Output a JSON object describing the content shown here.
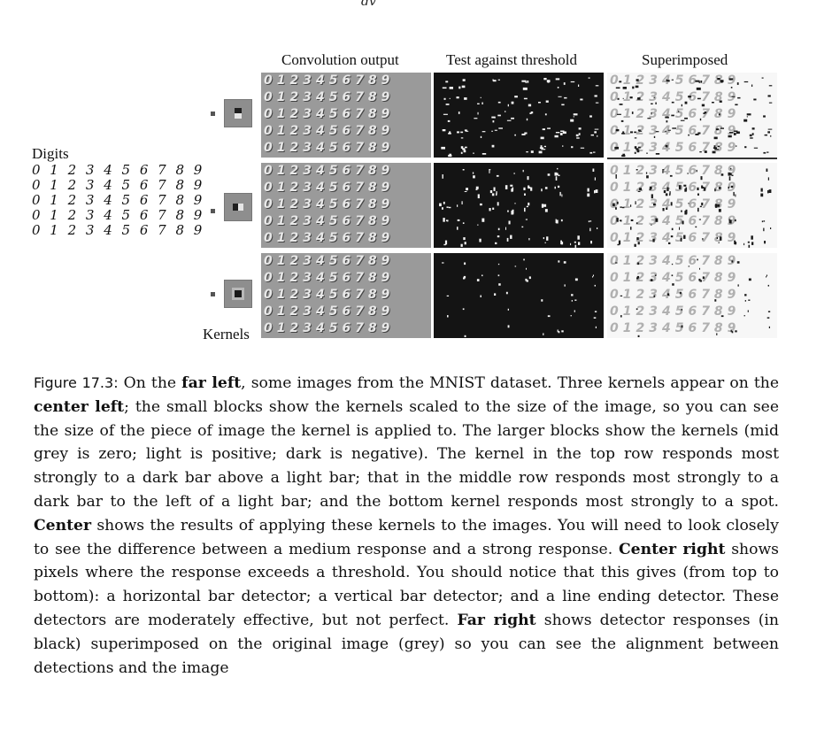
{
  "page_fragment": "dv",
  "figure": {
    "col_headers": [
      "Convolution output",
      "Test against threshold",
      "Superimposed"
    ],
    "digits_label": "Digits",
    "kernels_label": "Kernels",
    "digit_rows": [
      "0 1 2 3 4 5 6 7 8 9",
      "0 1 2 3 4 5 6 7 8 9",
      "0 1 2 3 4 5 6 7 8 9",
      "0 1 2 3 4 5 6 7 8 9",
      "0 1 2 3 4 5 6 7 8 9"
    ],
    "panel_rows": [
      "0123456789",
      "0123456789",
      "0123456789",
      "0123456789",
      "0123456789"
    ],
    "kernels": [
      {
        "name": "horizontal-bar-kernel",
        "light": "#e6e6e6",
        "dark": "#1f1f1f"
      },
      {
        "name": "vertical-bar-kernel",
        "light": "#e6e6e6",
        "dark": "#1f1f1f"
      },
      {
        "name": "spot-kernel",
        "light": "#8e8e8e",
        "dark": "#1a1a1a"
      }
    ]
  },
  "caption": {
    "fig_no": "Figure 17.3:",
    "parts": [
      {
        "t": " On the ",
        "b": false
      },
      {
        "t": "far left",
        "b": true
      },
      {
        "t": ", some images from the MNIST dataset. Three kernels appear on the ",
        "b": false
      },
      {
        "t": "center left",
        "b": true
      },
      {
        "t": "; the small blocks show the kernels scaled to the size of the image, so you can see the size of the piece of image the kernel is applied to. The larger blocks show the kernels (mid grey is zero; light is positive; dark is negative). The kernel in the top row responds most strongly to a dark bar above a light bar; that in the middle row responds most strongly to a dark bar to the left of a light bar; and the bottom kernel responds most strongly to a spot. ",
        "b": false
      },
      {
        "t": "Center",
        "b": true
      },
      {
        "t": " shows the results of applying these kernels to the images. You will need to look closely to see the difference between a medium response and a strong response. ",
        "b": false
      },
      {
        "t": "Center right",
        "b": true
      },
      {
        "t": " shows pixels where the response exceeds a threshold. You should notice that this gives (from top to bottom): a horizontal bar detector; a vertical bar detector; and a line ending detector. These detectors are moderately effective, but not perfect. ",
        "b": false
      },
      {
        "t": "Far right",
        "b": true
      },
      {
        "t": " shows detector responses (in black) superimposed on the original image (grey) so you can see the alignment between detections and the image",
        "b": false
      }
    ]
  }
}
